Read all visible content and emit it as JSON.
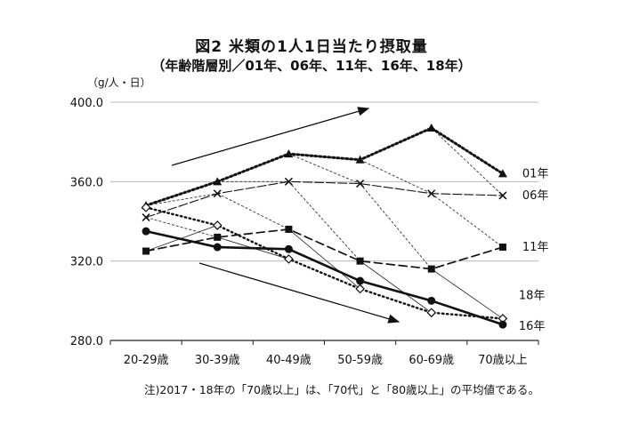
{
  "chart_data": {
    "type": "line",
    "title": "図2 米類の1人1日当たり摂取量",
    "subtitle": "（年齢階層別／01年、06年、11年、16年、18年）",
    "ylabel": "（g/人・日）",
    "categories": [
      "20-29歳",
      "30-39歳",
      "40-49歳",
      "50-59歳",
      "60-69歳",
      "70歳以上"
    ],
    "ylim": [
      280,
      400
    ],
    "yticks": [
      "400.0",
      "360.0",
      "320.0",
      "280.0"
    ],
    "grid": true,
    "note": "注)2017・18年の「70歳以上」は、「70代」と「80歳以上」の平均値である。",
    "series": [
      {
        "name": "01年",
        "values": [
          348,
          360,
          374,
          371,
          387,
          364
        ]
      },
      {
        "name": "06年",
        "values": [
          342,
          354,
          360,
          359,
          354,
          353
        ]
      },
      {
        "name": "11年",
        "values": [
          325,
          332,
          336,
          320,
          316,
          327
        ]
      },
      {
        "name": "18年",
        "values": [
          347,
          338,
          321,
          306,
          294,
          291
        ]
      },
      {
        "name": "16年",
        "values": [
          335,
          327,
          326,
          310,
          300,
          288
        ]
      }
    ]
  }
}
